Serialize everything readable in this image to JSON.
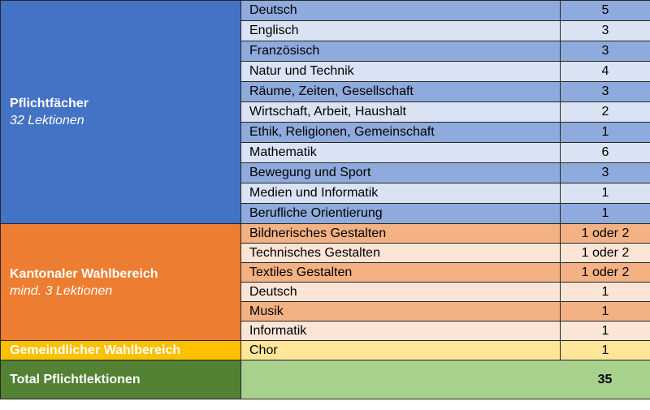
{
  "pflicht": {
    "title": "Pflichtfächer",
    "subtitle": "32 Lektionen",
    "rows": [
      {
        "subject": "Deutsch",
        "value": "5"
      },
      {
        "subject": "Englisch",
        "value": "3"
      },
      {
        "subject": "Französisch",
        "value": "3"
      },
      {
        "subject": "Natur und Technik",
        "value": "4"
      },
      {
        "subject": "Räume, Zeiten, Gesellschaft",
        "value": "3"
      },
      {
        "subject": "Wirtschaft, Arbeit, Haushalt",
        "value": "2"
      },
      {
        "subject": "Ethik, Religionen, Gemeinschaft",
        "value": "1"
      },
      {
        "subject": "Mathematik",
        "value": "6"
      },
      {
        "subject": "Bewegung und Sport",
        "value": "3"
      },
      {
        "subject": "Medien und Informatik",
        "value": "1"
      },
      {
        "subject": "Berufliche Orientierung",
        "value": "1"
      }
    ]
  },
  "kantonal": {
    "title": "Kantonaler Wahlbereich",
    "subtitle": "mind. 3 Lektionen",
    "rows": [
      {
        "subject": "Bildnerisches Gestalten",
        "value": "1 oder 2"
      },
      {
        "subject": "Technisches Gestalten",
        "value": "1 oder 2"
      },
      {
        "subject": "Textiles Gestalten",
        "value": "1 oder 2"
      },
      {
        "subject": "Deutsch",
        "value": "1"
      },
      {
        "subject": "Musik",
        "value": "1"
      },
      {
        "subject": "Informatik",
        "value": "1"
      }
    ]
  },
  "gemeindlich": {
    "title": "Gemeindlicher Wahlbereich",
    "rows": [
      {
        "subject": "Chor",
        "value": "1"
      }
    ]
  },
  "total": {
    "title": "Total Pflichtlektionen",
    "value": "35"
  },
  "colors": {
    "pflicht": "#4472c4",
    "kantonal": "#ed7d31",
    "gemeindlich": "#ffc000",
    "total": "#548235"
  }
}
